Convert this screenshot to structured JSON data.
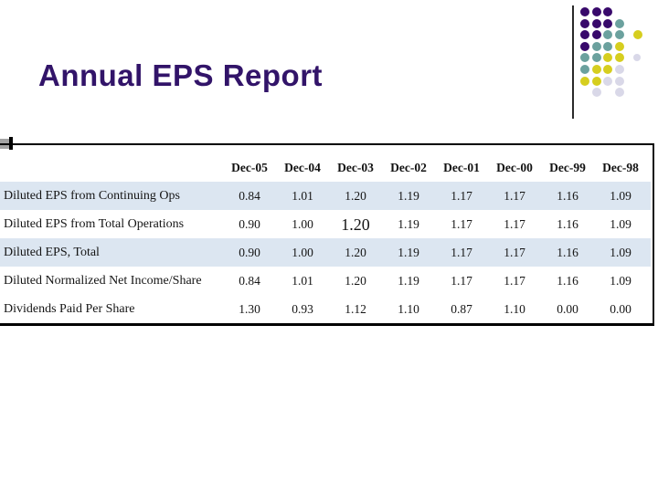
{
  "slide": {
    "title": "Annual EPS Report",
    "title_color": "#321469",
    "background_color": "#ffffff"
  },
  "ornament": {
    "description": "diagonal dot cluster with vertical rule",
    "palette": {
      "P": "#38096b",
      "T": "#6ba19e",
      "Y": "#d6ce1f",
      "L": "#d9d8e8"
    },
    "pattern_rows": [
      "PPP",
      "PPPT",
      "PPTTY",
      "PTTY",
      "TTYYL",
      "TYYL",
      "YYLL",
      ".L.L"
    ]
  },
  "table": {
    "highlight_color": "#dce6f1",
    "columns": [
      "Dec-05",
      "Dec-04",
      "Dec-03",
      "Dec-02",
      "Dec-01",
      "Dec-00",
      "Dec-99",
      "Dec-98"
    ],
    "rows": [
      {
        "label": "Diluted EPS from Continuing Ops",
        "values": [
          "0.84",
          "1.01",
          "1.20",
          "1.19",
          "1.17",
          "1.17",
          "1.16",
          "1.09"
        ],
        "highlighted": true,
        "big_value_index": -1
      },
      {
        "label": "Diluted EPS from Total Operations",
        "values": [
          "0.90",
          "1.00",
          "1.20",
          "1.19",
          "1.17",
          "1.17",
          "1.16",
          "1.09"
        ],
        "highlighted": false,
        "big_value_index": 2
      },
      {
        "label": "Diluted EPS, Total",
        "values": [
          "0.90",
          "1.00",
          "1.20",
          "1.19",
          "1.17",
          "1.17",
          "1.16",
          "1.09"
        ],
        "highlighted": true,
        "big_value_index": -1
      },
      {
        "label": "Diluted Normalized Net Income/Share",
        "values": [
          "0.84",
          "1.01",
          "1.20",
          "1.19",
          "1.17",
          "1.17",
          "1.16",
          "1.09"
        ],
        "highlighted": false,
        "big_value_index": -1
      },
      {
        "label": "Dividends Paid Per Share",
        "values": [
          "1.30",
          "0.93",
          "1.12",
          "1.10",
          "0.87",
          "1.10",
          "0.00",
          "0.00"
        ],
        "highlighted": false,
        "big_value_index": -1
      }
    ]
  }
}
